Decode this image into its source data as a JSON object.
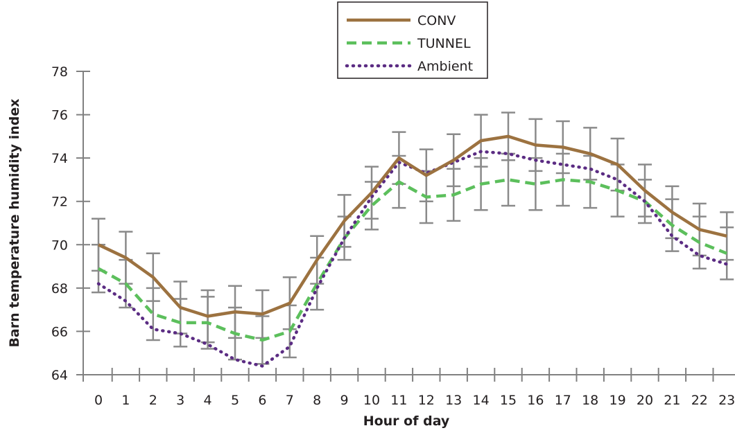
{
  "chart_data": {
    "type": "line",
    "title": "",
    "xlabel": "Hour of day",
    "ylabel": "Barn temperature humidity index",
    "x": [
      0,
      1,
      2,
      3,
      4,
      5,
      6,
      7,
      8,
      9,
      10,
      11,
      12,
      13,
      14,
      15,
      16,
      17,
      18,
      19,
      20,
      21,
      22,
      23
    ],
    "x_tick_labels": [
      "0",
      "1",
      "2",
      "3",
      "4",
      "5",
      "6",
      "7",
      "8",
      "9",
      "10",
      "11",
      "12",
      "13",
      "14",
      "15",
      "16",
      "17",
      "18",
      "19",
      "20",
      "21",
      "22",
      "23"
    ],
    "ylim": [
      64,
      78
    ],
    "y_ticks": [
      64,
      66,
      68,
      70,
      72,
      74,
      76,
      78
    ],
    "y_tick_labels": [
      "64",
      "66",
      "68",
      "70",
      "72",
      "74",
      "76",
      "78"
    ],
    "grid": false,
    "legend_position": "top-center",
    "series": [
      {
        "name": "CONV",
        "style": "solid",
        "color": "#9c7240",
        "values": [
          70.0,
          69.4,
          68.5,
          67.1,
          66.7,
          66.9,
          66.8,
          67.3,
          69.3,
          71.1,
          72.4,
          74.0,
          73.2,
          73.9,
          74.8,
          75.0,
          74.6,
          74.5,
          74.2,
          73.7,
          72.5,
          71.5,
          70.7,
          70.4
        ],
        "error": [
          1.2,
          1.2,
          1.1,
          1.2,
          1.2,
          1.2,
          1.1,
          1.2,
          1.1,
          1.2,
          1.2,
          1.2,
          1.2,
          1.2,
          1.2,
          1.1,
          1.2,
          1.2,
          1.2,
          1.2,
          1.2,
          1.2,
          1.2,
          1.1
        ]
      },
      {
        "name": "TUNNEL",
        "style": "dashed",
        "color": "#5cbf5c",
        "values": [
          68.9,
          68.2,
          66.8,
          66.4,
          66.4,
          65.9,
          65.6,
          66.0,
          68.2,
          70.3,
          71.8,
          72.9,
          72.2,
          72.3,
          72.8,
          73.0,
          72.8,
          73.0,
          72.9,
          72.5,
          72.0,
          70.9,
          70.1,
          69.6
        ],
        "error": [
          1.1,
          1.1,
          1.2,
          1.1,
          1.2,
          1.2,
          1.1,
          1.2,
          1.2,
          1.0,
          1.1,
          1.2,
          1.2,
          1.2,
          1.2,
          1.2,
          1.2,
          1.2,
          1.2,
          1.2,
          1.0,
          1.2,
          1.2,
          1.2
        ]
      },
      {
        "name": "Ambient",
        "style": "dotted",
        "color": "#5b2c83",
        "values": [
          68.2,
          67.4,
          66.1,
          65.9,
          65.4,
          64.7,
          64.4,
          65.3,
          68.0,
          70.3,
          72.2,
          73.8,
          73.3,
          73.8,
          74.3,
          74.2,
          73.9,
          73.7,
          73.5,
          73.0,
          72.0,
          70.4,
          69.5,
          69.1
        ],
        "error": [
          0,
          0,
          0,
          0,
          0,
          0,
          0,
          0,
          0,
          0,
          0,
          0,
          0,
          0,
          0,
          0,
          0,
          0,
          0,
          0,
          0,
          0,
          0,
          0
        ]
      }
    ]
  }
}
